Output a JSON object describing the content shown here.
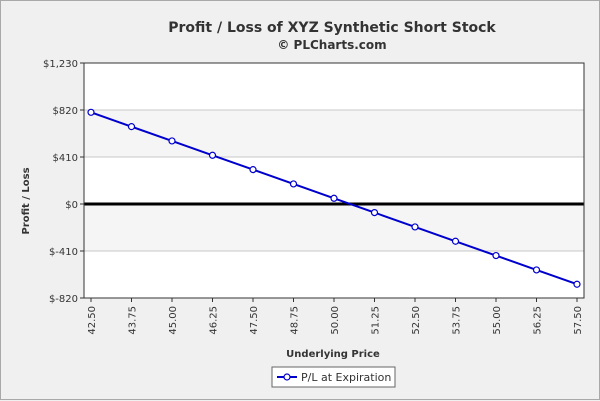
{
  "chart_data": {
    "type": "line",
    "title": "Profit / Loss of XYZ Synthetic Short Stock",
    "subtitle": "© PLCharts.com",
    "xlabel": "Underlying Price",
    "ylabel": "Profit / Loss",
    "x_tick_labels": [
      "42.50",
      "43.75",
      "45.00",
      "46.25",
      "47.50",
      "48.75",
      "50.00",
      "51.25",
      "52.50",
      "53.75",
      "55.00",
      "56.25",
      "57.50"
    ],
    "y_tick_labels": [
      "$1,230",
      "$820",
      "$410",
      "$0",
      "$-410",
      "$-820"
    ],
    "ylim": [
      -820,
      1230
    ],
    "y_ticks": [
      1230,
      820,
      410,
      0,
      -410,
      -820
    ],
    "grid": true,
    "zero_line": true,
    "legend_position": "bottom-center",
    "series": [
      {
        "name": "P/L at Expiration",
        "color": "#0000cc",
        "x": [
          42.5,
          43.75,
          45.0,
          46.25,
          47.5,
          48.75,
          50.0,
          51.25,
          52.5,
          53.75,
          55.0,
          56.25,
          57.5
        ],
        "y": [
          800,
          675,
          550,
          425,
          300,
          175,
          50,
          -75,
          -200,
          -325,
          -450,
          -575,
          -700
        ]
      }
    ]
  }
}
